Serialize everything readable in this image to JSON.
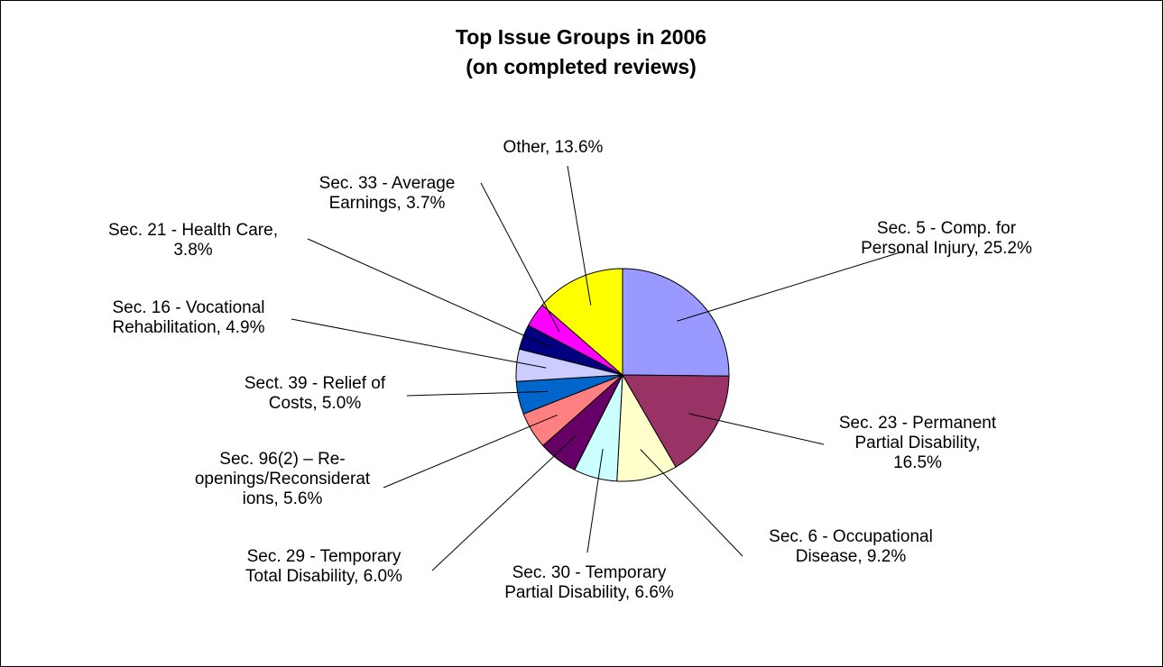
{
  "chart_data": {
    "type": "pie",
    "title_lines": [
      "Top Issue Groups in 2006",
      "(on completed reviews)"
    ],
    "slices": [
      {
        "label_lines": [
          "Sec. 5 - Comp. for",
          "Personal Injury, 25.2%"
        ],
        "value": 25.2,
        "color": "#9999FF"
      },
      {
        "label_lines": [
          "Sec. 23 - Permanent",
          "Partial Disability,",
          "16.5%"
        ],
        "value": 16.5,
        "color": "#993366"
      },
      {
        "label_lines": [
          "Sec. 6 - Occupational",
          "Disease, 9.2%"
        ],
        "value": 9.2,
        "color": "#FFFFCC"
      },
      {
        "label_lines": [
          "Sec. 30 - Temporary",
          "Partial Disability, 6.6%"
        ],
        "value": 6.6,
        "color": "#CCFFFF"
      },
      {
        "label_lines": [
          "Sec. 29 - Temporary",
          "Total Disability, 6.0%"
        ],
        "value": 6.0,
        "color": "#660066"
      },
      {
        "label_lines": [
          "Sec. 96(2) – Re-",
          "openings/Reconsiderat",
          "ions, 5.6%"
        ],
        "value": 5.6,
        "color": "#FF8080"
      },
      {
        "label_lines": [
          "Sect. 39 - Relief of",
          "Costs, 5.0%"
        ],
        "value": 5.0,
        "color": "#0066CC"
      },
      {
        "label_lines": [
          "Sec. 16 - Vocational",
          "Rehabilitation, 4.9%"
        ],
        "value": 4.9,
        "color": "#CCCCFF"
      },
      {
        "label_lines": [
          "Sec. 21 - Health Care,",
          "3.8%"
        ],
        "value": 3.8,
        "color": "#000080"
      },
      {
        "label_lines": [
          "Sec. 33 - Average",
          "Earnings, 3.7%"
        ],
        "value": 3.7,
        "color": "#FF00FF"
      },
      {
        "label_lines": [
          "Other, 13.6%"
        ],
        "value": 13.6,
        "color": "#FFFF00"
      }
    ],
    "start_angle_deg": 0,
    "direction": "clockwise",
    "legend": "none"
  }
}
